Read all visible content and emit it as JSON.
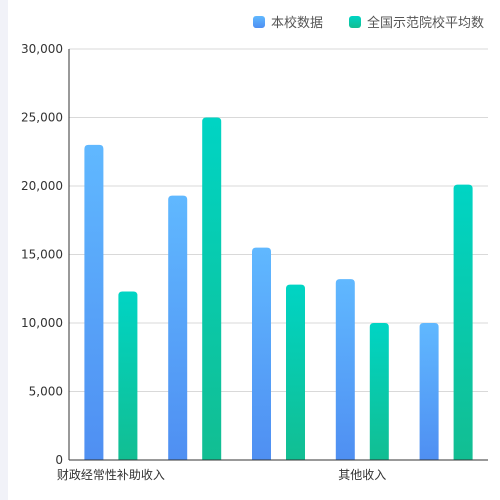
{
  "chart_data": {
    "type": "bar",
    "categories": [
      "财政经常性补助收入",
      "",
      "",
      "其他收入",
      ""
    ],
    "series": [
      {
        "name": "本校数据",
        "values": [
          23000,
          19300,
          15500,
          13200,
          10000
        ]
      },
      {
        "name": "全国示范院校平均数",
        "values": [
          12300,
          25000,
          12800,
          10000,
          20100
        ]
      }
    ],
    "ylim": [
      0,
      30000
    ],
    "yticks": [
      "0",
      "5,000",
      "10,000",
      "15,000",
      "20,000",
      "25,000",
      "30,000"
    ],
    "grid": true,
    "legend_position": "top-right"
  },
  "colors": {
    "series1_top": "#60b8ff",
    "series1_bottom": "#4f8ff2",
    "series2_top": "#00d4c4",
    "series2_bottom": "#12be92",
    "grid": "#d9d9d9",
    "axis": "#333333",
    "tick_label": "#333333"
  }
}
